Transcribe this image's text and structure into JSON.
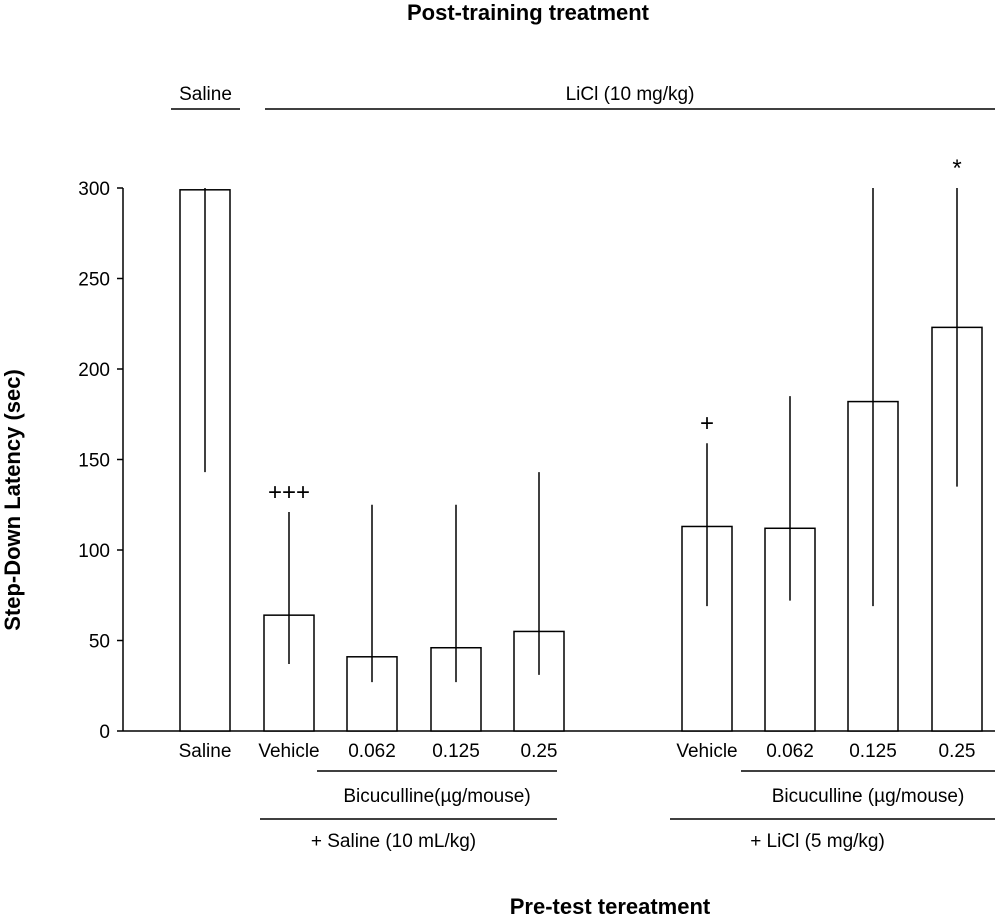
{
  "chart_data": {
    "type": "bar",
    "title": "Post-training treatment",
    "xlabel": "Pre-test tereatment",
    "ylabel": "Step-Down Latency (sec)",
    "ylim": [
      0,
      300
    ],
    "yticks": [
      "0",
      "50",
      "100",
      "150",
      "200",
      "250",
      "300"
    ],
    "grid": false,
    "categories": [
      "Saline",
      "Vehicle",
      "0.062",
      "0.125",
      "0.25",
      "Vehicle",
      "0.062",
      "0.125",
      "0.25"
    ],
    "values": [
      299,
      64,
      41,
      46,
      55,
      113,
      112,
      182,
      223
    ],
    "error_low": [
      143,
      37,
      27,
      27,
      31,
      69,
      72,
      69,
      135
    ],
    "error_high": [
      300,
      121,
      125,
      125,
      143,
      159,
      185,
      300,
      300
    ],
    "annotations": [
      "",
      "+++",
      "",
      "",
      "",
      "+",
      "",
      "",
      "*"
    ],
    "post_training_groups": [
      {
        "label": "Saline",
        "from": 0,
        "to": 0
      },
      {
        "label": "LiCl (10 mg/kg)",
        "from": 1,
        "to": 8
      }
    ],
    "bicuculline_groups": [
      {
        "label": "Bicuculline(µg/mouse)",
        "from": 2,
        "to": 4
      },
      {
        "label": "Bicuculline (µg/mouse)",
        "from": 6,
        "to": 8
      }
    ],
    "pretest_groups": [
      {
        "label": "+ Saline (10 mL/kg)",
        "from": 1,
        "to": 4
      },
      {
        "label": "+ LiCl (5 mg/kg)",
        "from": 5,
        "to": 8
      }
    ]
  }
}
